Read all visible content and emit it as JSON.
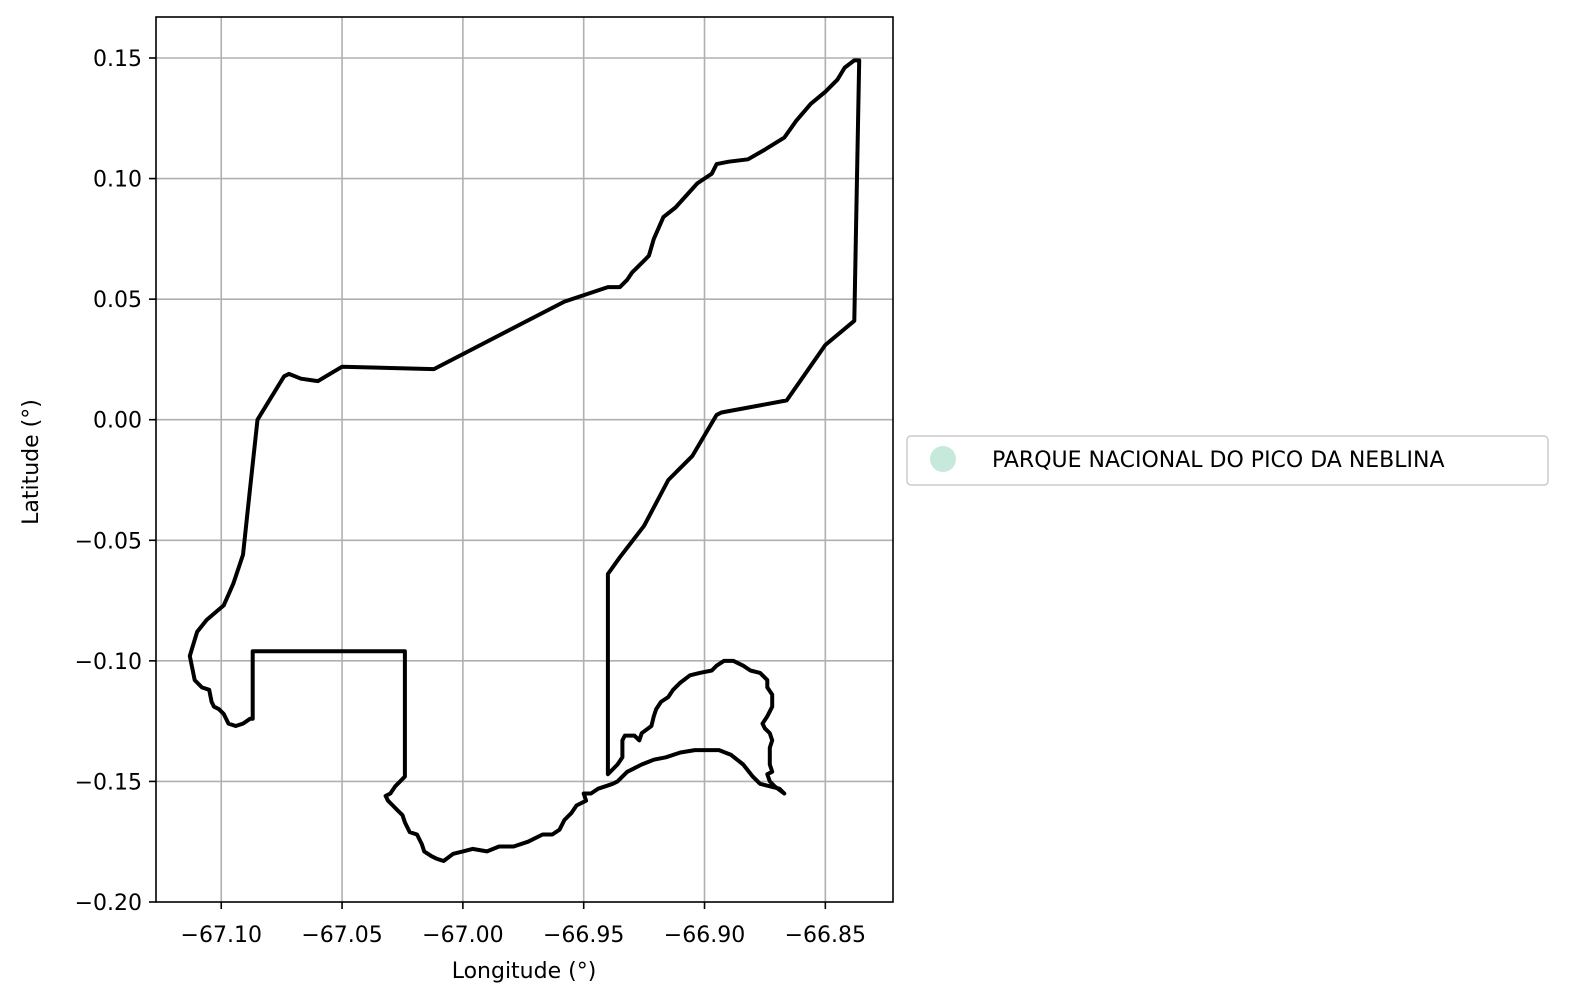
{
  "chart_data": {
    "type": "map",
    "xlabel": "Longitude (°)",
    "ylabel": "Latitude (°)",
    "xlim": [
      -67.127,
      -66.822
    ],
    "ylim": [
      -0.2,
      0.167
    ],
    "grid": true,
    "x_ticks": [
      -67.1,
      -67.05,
      -67.0,
      -66.95,
      -66.9,
      -66.85
    ],
    "x_tick_labels": [
      "−67.10",
      "−67.05",
      "−67.00",
      "−66.95",
      "−66.90",
      "−66.85"
    ],
    "y_ticks": [
      0.15,
      0.1,
      0.05,
      0.0,
      -0.05,
      -0.1,
      -0.15,
      -0.2
    ],
    "y_tick_labels": [
      "0.15",
      "0.10",
      "0.05",
      "0.00",
      "−0.05",
      "−0.10",
      "−0.15",
      "−0.20"
    ],
    "legend": {
      "placement": "outside-right",
      "entries": [
        {
          "label": "PARQUE NACIONAL DO PICO DA NEBLINA",
          "color": "#c7e9db",
          "marker": "circle"
        }
      ]
    },
    "boundary_color": "#000000",
    "boundary": [
      [
        -66.94,
        -0.147
      ],
      [
        -66.94,
        -0.064
      ],
      [
        -66.935,
        -0.057
      ],
      [
        -66.925,
        -0.044
      ],
      [
        -66.915,
        -0.025
      ],
      [
        -66.905,
        -0.015
      ],
      [
        -66.895,
        0.002
      ],
      [
        -66.893,
        0.003
      ],
      [
        -66.866,
        0.008
      ],
      [
        -66.85,
        0.031
      ],
      [
        -66.838,
        0.041
      ],
      [
        -66.836,
        0.149
      ],
      [
        -66.838,
        0.149
      ],
      [
        -66.842,
        0.146
      ],
      [
        -66.845,
        0.141
      ],
      [
        -66.85,
        0.136
      ],
      [
        -66.856,
        0.131
      ],
      [
        -66.862,
        0.124
      ],
      [
        -66.867,
        0.117
      ],
      [
        -66.875,
        0.112
      ],
      [
        -66.882,
        0.108
      ],
      [
        -66.89,
        0.107
      ],
      [
        -66.895,
        0.106
      ],
      [
        -66.897,
        0.102
      ],
      [
        -66.903,
        0.098
      ],
      [
        -66.912,
        0.088
      ],
      [
        -66.917,
        0.084
      ],
      [
        -66.921,
        0.075
      ],
      [
        -66.923,
        0.068
      ],
      [
        -66.925,
        0.066
      ],
      [
        -66.93,
        0.061
      ],
      [
        -66.932,
        0.058
      ],
      [
        -66.935,
        0.055
      ],
      [
        -66.94,
        0.055
      ],
      [
        -66.958,
        0.049
      ],
      [
        -67.012,
        0.021
      ],
      [
        -67.05,
        0.022
      ],
      [
        -67.06,
        0.016
      ],
      [
        -67.067,
        0.017
      ],
      [
        -67.072,
        0.019
      ],
      [
        -67.074,
        0.018
      ],
      [
        -67.085,
        0.0
      ],
      [
        -67.088,
        -0.028
      ],
      [
        -67.091,
        -0.056
      ],
      [
        -67.095,
        -0.068
      ],
      [
        -67.099,
        -0.077
      ],
      [
        -67.106,
        -0.083
      ],
      [
        -67.11,
        -0.088
      ],
      [
        -67.113,
        -0.098
      ],
      [
        -67.111,
        -0.108
      ],
      [
        -67.108,
        -0.111
      ],
      [
        -67.105,
        -0.112
      ],
      [
        -67.104,
        -0.117
      ],
      [
        -67.103,
        -0.119
      ],
      [
        -67.101,
        -0.12
      ],
      [
        -67.099,
        -0.122
      ],
      [
        -67.097,
        -0.126
      ],
      [
        -67.094,
        -0.127
      ],
      [
        -67.091,
        -0.126
      ],
      [
        -67.088,
        -0.124
      ],
      [
        -67.087,
        -0.124
      ],
      [
        -67.087,
        -0.096
      ],
      [
        -67.024,
        -0.096
      ],
      [
        -67.024,
        -0.148
      ],
      [
        -67.026,
        -0.15
      ],
      [
        -67.028,
        -0.152
      ],
      [
        -67.03,
        -0.155
      ],
      [
        -67.032,
        -0.156
      ],
      [
        -67.031,
        -0.158
      ],
      [
        -67.029,
        -0.16
      ],
      [
        -67.027,
        -0.162
      ],
      [
        -67.025,
        -0.164
      ],
      [
        -67.024,
        -0.167
      ],
      [
        -67.022,
        -0.171
      ],
      [
        -67.019,
        -0.172
      ],
      [
        -67.017,
        -0.176
      ],
      [
        -67.016,
        -0.179
      ],
      [
        -67.013,
        -0.181
      ],
      [
        -67.011,
        -0.182
      ],
      [
        -67.008,
        -0.183
      ],
      [
        -67.004,
        -0.18
      ],
      [
        -67.0,
        -0.179
      ],
      [
        -66.996,
        -0.178
      ],
      [
        -66.99,
        -0.179
      ],
      [
        -66.985,
        -0.177
      ],
      [
        -66.979,
        -0.177
      ],
      [
        -66.973,
        -0.175
      ],
      [
        -66.967,
        -0.172
      ],
      [
        -66.963,
        -0.172
      ],
      [
        -66.96,
        -0.17
      ],
      [
        -66.958,
        -0.166
      ],
      [
        -66.955,
        -0.163
      ],
      [
        -66.953,
        -0.16
      ],
      [
        -66.949,
        -0.158
      ],
      [
        -66.95,
        -0.155
      ],
      [
        -66.947,
        -0.155
      ],
      [
        -66.944,
        -0.153
      ],
      [
        -66.941,
        -0.152
      ],
      [
        -66.938,
        -0.151
      ],
      [
        -66.936,
        -0.15
      ],
      [
        -66.934,
        -0.148
      ],
      [
        -66.932,
        -0.146
      ],
      [
        -66.93,
        -0.145
      ],
      [
        -66.926,
        -0.143
      ],
      [
        -66.921,
        -0.141
      ],
      [
        -66.916,
        -0.14
      ],
      [
        -66.91,
        -0.138
      ],
      [
        -66.904,
        -0.137
      ],
      [
        -66.899,
        -0.137
      ],
      [
        -66.894,
        -0.137
      ],
      [
        -66.889,
        -0.139
      ],
      [
        -66.884,
        -0.143
      ],
      [
        -66.88,
        -0.148
      ],
      [
        -66.877,
        -0.151
      ],
      [
        -66.873,
        -0.152
      ],
      [
        -66.869,
        -0.153
      ],
      [
        -66.867,
        -0.155
      ],
      [
        -66.871,
        -0.152
      ],
      [
        -66.873,
        -0.15
      ],
      [
        -66.874,
        -0.147
      ],
      [
        -66.872,
        -0.146
      ],
      [
        -66.873,
        -0.143
      ],
      [
        -66.873,
        -0.14
      ],
      [
        -66.873,
        -0.136
      ],
      [
        -66.872,
        -0.133
      ],
      [
        -66.873,
        -0.13
      ],
      [
        -66.875,
        -0.128
      ],
      [
        -66.876,
        -0.126
      ],
      [
        -66.874,
        -0.123
      ],
      [
        -66.872,
        -0.119
      ],
      [
        -66.872,
        -0.114
      ],
      [
        -66.874,
        -0.111
      ],
      [
        -66.874,
        -0.108
      ],
      [
        -66.877,
        -0.105
      ],
      [
        -66.881,
        -0.104
      ],
      [
        -66.884,
        -0.102
      ],
      [
        -66.888,
        -0.1
      ],
      [
        -66.892,
        -0.1
      ],
      [
        -66.895,
        -0.102
      ],
      [
        -66.897,
        -0.104
      ],
      [
        -66.902,
        -0.105
      ],
      [
        -66.906,
        -0.106
      ],
      [
        -66.91,
        -0.109
      ],
      [
        -66.913,
        -0.112
      ],
      [
        -66.915,
        -0.115
      ],
      [
        -66.918,
        -0.117
      ],
      [
        -66.92,
        -0.12
      ],
      [
        -66.921,
        -0.123
      ],
      [
        -66.922,
        -0.127
      ],
      [
        -66.926,
        -0.13
      ],
      [
        -66.927,
        -0.133
      ],
      [
        -66.929,
        -0.131
      ],
      [
        -66.933,
        -0.131
      ],
      [
        -66.934,
        -0.133
      ],
      [
        -66.934,
        -0.14
      ],
      [
        -66.936,
        -0.143
      ],
      [
        -66.938,
        -0.145
      ],
      [
        -66.94,
        -0.147
      ]
    ]
  }
}
